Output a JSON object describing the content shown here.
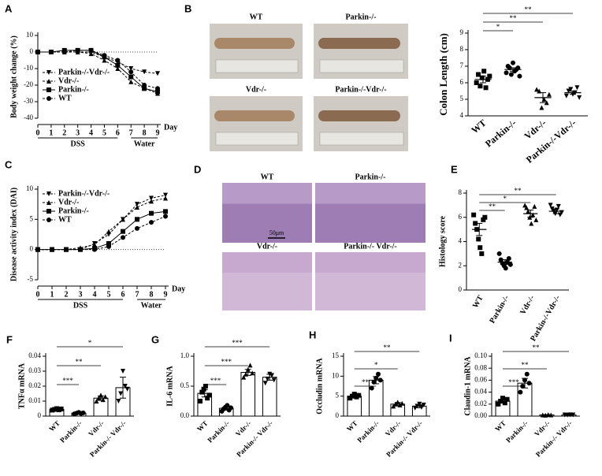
{
  "panel_labels": [
    "A",
    "B",
    "C",
    "D",
    "E",
    "F",
    "G",
    "H",
    "I"
  ],
  "photos_b": {
    "captions": [
      "WT",
      "Parkin-/-",
      "Vdr-/-",
      "Parkin-/-Vdr-/-"
    ]
  },
  "photos_d": {
    "captions": [
      "WT",
      "Parkin-/-",
      "Vdr-/-",
      "Parkin-/- Vdr-/-"
    ],
    "scale_bar": "50μm"
  },
  "chart_data": [
    {
      "type": "line",
      "ylabel": "Body weight change (%)",
      "xlabel": "Day",
      "phases": [
        "DSS",
        "Water"
      ],
      "x": [
        0,
        1,
        2,
        3,
        4,
        5,
        6,
        7,
        8,
        9
      ],
      "xticks": [
        0,
        1,
        2,
        3,
        4,
        5,
        6,
        7,
        8,
        9
      ],
      "xlim": [
        0,
        9
      ],
      "ylim": [
        -40,
        10
      ],
      "yticks": [
        10,
        0,
        -10,
        -20,
        -30,
        -40
      ],
      "series": [
        {
          "name": "Parkin-/-Vdr-/-",
          "color": "#000",
          "marker": "triangle-down",
          "dash": true,
          "values": [
            0,
            0,
            0,
            0,
            0,
            -3,
            -6,
            -10,
            -12,
            -13
          ]
        },
        {
          "name": "Vdr-/-",
          "color": "#000",
          "marker": "triangle",
          "dash": true,
          "values": [
            0,
            0,
            0,
            0,
            -1,
            -5,
            -10,
            -18,
            -22,
            -25
          ]
        },
        {
          "name": "Parkin-/-",
          "color": "#000",
          "marker": "square",
          "dash": false,
          "values": [
            0,
            0,
            1,
            1,
            1,
            -3,
            -8,
            -15,
            -22,
            -24
          ]
        },
        {
          "name": "WT",
          "color": "#000",
          "marker": "circle",
          "dash": true,
          "values": [
            0,
            0,
            0,
            1,
            1,
            -2,
            -5,
            -12,
            -20,
            -22
          ]
        }
      ]
    },
    {
      "type": "dot",
      "ylabel": "Colon Length (cm)",
      "categories": [
        "WT",
        "Parkin-/-",
        "Vdr-/-",
        "Parkin-/-Vdr-/-"
      ],
      "values": [
        6.2,
        6.8,
        5.1,
        5.4
      ],
      "errors": [
        0.2,
        0.1,
        0.3,
        0.1
      ],
      "points": [
        [
          6.0,
          6.5,
          5.8,
          6.3,
          6.7,
          5.7,
          6.2,
          6.4
        ],
        [
          6.6,
          7.0,
          6.9,
          6.5,
          7.2,
          6.7,
          6.8,
          6.9,
          6.4
        ],
        [
          5.6,
          5.5,
          4.5,
          5.0,
          4.8,
          5.3
        ],
        [
          5.2,
          5.5,
          5.6,
          5.3,
          5.4,
          5.7,
          5.1
        ]
      ],
      "ylim": [
        4,
        9
      ],
      "yticks": [
        4,
        5,
        6,
        7,
        8,
        9
      ],
      "significance": [
        "*",
        "**",
        "**"
      ]
    },
    {
      "type": "line",
      "ylabel": "Disease activity index (DAI)",
      "xlabel": "Day",
      "phases": [
        "DSS",
        "Water"
      ],
      "x": [
        0,
        1,
        2,
        3,
        4,
        5,
        6,
        7,
        8,
        9
      ],
      "xticks": [
        0,
        1,
        2,
        3,
        4,
        5,
        6,
        7,
        8,
        9
      ],
      "xlim": [
        0,
        9
      ],
      "ylim": [
        -5,
        10
      ],
      "yticks": [
        -5,
        0,
        5,
        10
      ],
      "series": [
        {
          "name": "Parkin-/-Vdr-/-",
          "color": "#000",
          "marker": "triangle-down",
          "dash": true,
          "values": [
            0,
            0,
            0,
            0,
            1,
            2.5,
            5,
            7.5,
            8.5,
            9
          ]
        },
        {
          "name": "Vdr-/-",
          "color": "#000",
          "marker": "triangle",
          "dash": true,
          "values": [
            0,
            0,
            0,
            0.3,
            0.8,
            3,
            5,
            7,
            8,
            8.5
          ]
        },
        {
          "name": "Parkin-/-",
          "color": "#000",
          "marker": "square",
          "dash": false,
          "values": [
            0,
            0,
            0,
            0,
            0.2,
            1,
            3,
            5,
            6,
            6.3
          ]
        },
        {
          "name": "WT",
          "color": "#000",
          "marker": "circle",
          "dash": true,
          "values": [
            0,
            0,
            0,
            0,
            0,
            0.5,
            2,
            3.5,
            4.5,
            5.5
          ]
        }
      ]
    },
    {
      "type": "dot",
      "ylabel": "Histology score",
      "categories": [
        "WT",
        "Parkin-/-",
        "Vdr-/-",
        "Parkin-/-Vdr-/-"
      ],
      "values": [
        5,
        2.3,
        6.3,
        6.5
      ],
      "errors": [
        0.5,
        0.2,
        0.3,
        0.2
      ],
      "points": [
        [
          6.2,
          5.5,
          5.0,
          4.2,
          3.5,
          3.0,
          5.8,
          6.0
        ],
        [
          3.0,
          2.5,
          2.2,
          2.0,
          1.8,
          2.3,
          2.6,
          2.1
        ],
        [
          7.0,
          6.8,
          6.5,
          6.0,
          5.5,
          6.2,
          6.9,
          5.8
        ],
        [
          7.0,
          6.7,
          6.5,
          6.3,
          6.6,
          6.9,
          6.2,
          6.4
        ]
      ],
      "ylim": [
        0,
        8
      ],
      "yticks": [
        0,
        2,
        4,
        6,
        8
      ],
      "significance": [
        "**",
        "*",
        "**"
      ]
    },
    {
      "type": "bar",
      "ylabel": "TNFα mRNA",
      "categories": [
        "WT",
        "Parkin-/-",
        "Vdr-/-",
        "Parkin-/- Vdr-/-"
      ],
      "values": [
        0.0045,
        0.002,
        0.012,
        0.019
      ],
      "errors": [
        0.0005,
        0.0003,
        0.0015,
        0.007
      ],
      "points": [
        [
          0.004,
          0.0045,
          0.005,
          0.0042,
          0.0048
        ],
        [
          0.0015,
          0.002,
          0.0025,
          0.0018,
          0.0022
        ],
        [
          0.01,
          0.012,
          0.014,
          0.011,
          0.013
        ],
        [
          0.01,
          0.015,
          0.03,
          0.02,
          0.018
        ]
      ],
      "ylim": [
        0,
        0.04
      ],
      "yticks": [
        0,
        0.01,
        0.02,
        0.03,
        0.04
      ],
      "significance": [
        "***",
        "**",
        "*"
      ]
    },
    {
      "type": "bar",
      "ylabel": "IL-6 mRNA",
      "categories": [
        "WT",
        "Parkin-/-",
        "Vdr-/-",
        "Parkin-/- Vdr-/-"
      ],
      "values": [
        0.38,
        0.13,
        0.73,
        0.65
      ],
      "errors": [
        0.06,
        0.03,
        0.05,
        0.05
      ],
      "points": [
        [
          0.25,
          0.4,
          0.45,
          0.5,
          0.3,
          0.35
        ],
        [
          0.08,
          0.12,
          0.15,
          0.18,
          0.1,
          0.14
        ],
        [
          0.65,
          0.7,
          0.78,
          0.85,
          0.72
        ],
        [
          0.55,
          0.62,
          0.7,
          0.68,
          0.6
        ]
      ],
      "ylim": [
        0,
        1
      ],
      "yticks": [
        {
          "value": 0,
          "label": "0.0"
        },
        {
          "value": 0.5,
          "label": "0.5"
        },
        {
          "value": 1,
          "label": "1.0"
        }
      ],
      "significance": [
        "***",
        "***",
        "***"
      ]
    },
    {
      "type": "bar",
      "ylabel": "Occludin mRNA",
      "categories": [
        "WT",
        "Parkin-/-",
        "Vdr-/-",
        "Parkin-/- Vdr-/-"
      ],
      "values": [
        5,
        9,
        3,
        2.5
      ],
      "errors": [
        0.3,
        0.9,
        0.4,
        0.4
      ],
      "points": [
        [
          4.5,
          5,
          5.5,
          4.8,
          5.2
        ],
        [
          7,
          8.5,
          9.5,
          10.5,
          9
        ],
        [
          2.5,
          3,
          3.5,
          2.8,
          3.2
        ],
        [
          2,
          2.5,
          3,
          2.2,
          2.8
        ]
      ],
      "ylim": [
        0,
        15
      ],
      "yticks": [
        0,
        5,
        10,
        15
      ],
      "significance": [
        "**",
        "*",
        "**"
      ]
    },
    {
      "type": "bar",
      "ylabel": "Claudin-1 mRNA",
      "categories": [
        "WT",
        "Parkin-/-",
        "Vdr-/-",
        "Parkin-/- Vdr-/-"
      ],
      "values": [
        0.025,
        0.055,
        0.002,
        0.002
      ],
      "errors": [
        0.003,
        0.008,
        0.0005,
        0.0005
      ],
      "points": [
        [
          0.02,
          0.025,
          0.03,
          0.022,
          0.028
        ],
        [
          0.04,
          0.05,
          0.06,
          0.07,
          0.055
        ],
        [
          0.002,
          0.0015,
          0.0025,
          0.002
        ],
        [
          0.002,
          0.0018,
          0.0022,
          0.002
        ]
      ],
      "ylim": [
        0,
        0.1
      ],
      "yticks": [
        {
          "value": 0,
          "label": "0.00"
        },
        {
          "value": 0.02,
          "label": "0.02"
        },
        {
          "value": 0.04,
          "label": "0.04"
        },
        {
          "value": 0.06,
          "label": "0.06"
        },
        {
          "value": 0.08,
          "label": "0.08"
        },
        {
          "value": 0.1,
          "label": "0.10"
        }
      ],
      "significance": [
        "***",
        "**",
        "**"
      ]
    }
  ]
}
